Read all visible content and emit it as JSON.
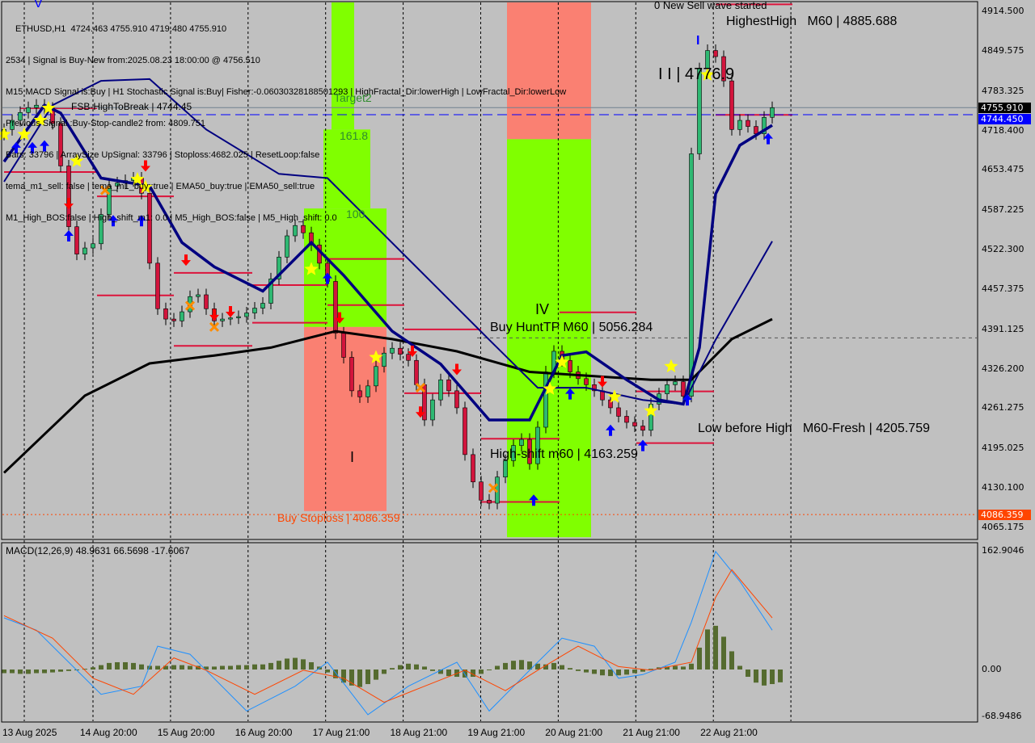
{
  "header": {
    "lines": [
      "ETHUSD,H1  4724.463 4755.910 4719.480 4755.910",
      "2534 | Signal is Buy-New from:2025.08.23 18:00:00 @ 4756.510",
      "M15 MACD Signal is:Buy | H1 Stochastic Signal is:Buy| Fisher:-0.06030328188501293 | HighFractal_Dir:lowerHigh | LowFractal_Dir:lowerLow",
      "Previous Signal :Buy-Stop-candle2 from: 4809.751",
      "Bars: 33796 | ArraySize UpSignal: 33796 | Stoploss:4682.025 | ResetLoop:false",
      "tema_m1_sell: false | tema_m1_buy::true | EMA50_buy:true | EMA50_sell:true",
      "M1_High_BOS:false | High_shift_m1: 0.0 | M5_High_BOS:false | M5_High_shift: 0.0"
    ]
  },
  "annotations": {
    "fsb": "FSB-HighToBreak | 4744.45",
    "target2": "Target2",
    "fib1618": "161.8",
    "fib100": "100",
    "buy_stoploss": "Buy Stoploss | 4086.359",
    "buy_hunt_tp": "Buy HuntTP M60 | 5056.284",
    "wave_iv": "IV",
    "wave_i": "I",
    "high_shift": "High-shift m60 | 4163.259",
    "low_before_high": "Low before High   M60-Fresh | 4205.759",
    "highest_high": "HighestHigh   M60 | 4885.688",
    "new_sell_wave": "0 New Sell wave started",
    "wave_iii": "I I | 4776.9",
    "wave_v": "V",
    "wave_i_blue": "I"
  },
  "colors": {
    "background": "#c0c0c0",
    "bull": "#2eb872",
    "bear": "#d2143c",
    "zone_green": "#80ff00",
    "zone_salmon": "#fa8072",
    "level_red": "#dc143c",
    "ma_slow": "#000000",
    "ma_navy": "#000080",
    "fsb_line": "#0000ff",
    "macd_line": "#1e90ff",
    "signal_line": "#ff4500",
    "histogram": "#556b2f"
  },
  "chart_data": [
    {
      "type": "candlestick",
      "symbol": "ETHUSD",
      "timeframe": "H1",
      "last_ohlc": {
        "open": 4724.463,
        "high": 4755.91,
        "low": 4719.48,
        "close": 4755.91
      },
      "ylim": [
        4040,
        4930
      ],
      "y_ticks": [
        "4914.500",
        "4849.575",
        "4783.325",
        "4718.400",
        "4653.475",
        "4587.225",
        "4522.300",
        "4457.375",
        "4391.125",
        "4326.200",
        "4261.275",
        "4195.025",
        "4130.100",
        "4065.175"
      ],
      "price_labels": [
        {
          "text": "4755.910",
          "price": 4755.91,
          "color": "#000000"
        },
        {
          "text": "4744.450",
          "price": 4744.45,
          "color": "#0000ff"
        },
        {
          "text": "4086.359",
          "price": 4086.359,
          "color": "#ff4500"
        }
      ],
      "x_tick_labels": [
        "13 Aug 2025",
        "14 Aug 20:00",
        "15 Aug 20:00",
        "16 Aug 20:00",
        "17 Aug 21:00",
        "18 Aug 21:00",
        "19 Aug 21:00",
        "20 Aug 21:00",
        "21 Aug 21:00",
        "22 Aug 21:00"
      ],
      "closes": [
        4720,
        4735,
        4748,
        4756,
        4760,
        4755,
        4730,
        4660,
        4560,
        4515,
        4525,
        4532,
        4580,
        4627,
        4632,
        4636,
        4640,
        4615,
        4500,
        4425,
        4408,
        4405,
        4420,
        4445,
        4448,
        4425,
        4405,
        4408,
        4410,
        4412,
        4418,
        4426,
        4434,
        4474,
        4510,
        4545,
        4562,
        4550,
        4530,
        4500,
        4470,
        4385,
        4345,
        4290,
        4280,
        4298,
        4330,
        4352,
        4360,
        4350,
        4340,
        4300,
        4242,
        4275,
        4308,
        4290,
        4262,
        4185,
        4140,
        4110,
        4105,
        4148,
        4175,
        4200,
        4210,
        4170,
        4230,
        4321,
        4355,
        4340,
        4321,
        4310,
        4300,
        4290,
        4275,
        4262,
        4248,
        4238,
        4232,
        4225,
        4268,
        4285,
        4300,
        4305,
        4281,
        4680,
        4820,
        4850,
        4840,
        4800,
        4720,
        4735,
        4725,
        4713,
        4740,
        4755.91
      ],
      "ma_slow": [
        [
          0,
          4155
        ],
        [
          10,
          4282
        ],
        [
          18,
          4335
        ],
        [
          26,
          4348
        ],
        [
          33,
          4361
        ],
        [
          41,
          4388
        ],
        [
          48,
          4375
        ],
        [
          56,
          4355
        ],
        [
          65,
          4321
        ],
        [
          72,
          4315
        ],
        [
          80,
          4308
        ],
        [
          85,
          4308
        ],
        [
          90,
          4375
        ],
        [
          95,
          4408
        ]
      ],
      "ma_navy_thin": [
        [
          0,
          4634
        ],
        [
          6,
          4760
        ],
        [
          12,
          4800
        ],
        [
          18,
          4803
        ],
        [
          25,
          4720
        ],
        [
          34,
          4647
        ],
        [
          40,
          4640
        ],
        [
          46,
          4560
        ],
        [
          53,
          4467
        ],
        [
          60,
          4374
        ],
        [
          66,
          4295
        ],
        [
          72,
          4295
        ],
        [
          79,
          4275
        ],
        [
          84,
          4268
        ],
        [
          88,
          4374
        ],
        [
          95,
          4536
        ]
      ],
      "ma_navy_thick": [
        [
          0,
          4667
        ],
        [
          5,
          4760
        ],
        [
          7,
          4747
        ],
        [
          12,
          4640
        ],
        [
          18,
          4627
        ],
        [
          22,
          4534
        ],
        [
          26,
          4494
        ],
        [
          32,
          4454
        ],
        [
          38,
          4534
        ],
        [
          42,
          4480
        ],
        [
          48,
          4388
        ],
        [
          54,
          4334
        ],
        [
          60,
          4242
        ],
        [
          65,
          4242
        ],
        [
          69,
          4348
        ],
        [
          72,
          4354
        ],
        [
          77,
          4308
        ],
        [
          81,
          4275
        ],
        [
          84,
          4268
        ],
        [
          86,
          4361
        ],
        [
          88,
          4614
        ],
        [
          91,
          4694
        ],
        [
          95,
          4727
        ]
      ],
      "fsb_level": 4744.45,
      "buy_stoploss_level": 4086.359,
      "hunt_tp_dashed_level": 4377,
      "levels": [
        [
          2,
          11.5,
          4755
        ],
        [
          0,
          11.5,
          4650
        ],
        [
          11.5,
          21,
          4610
        ],
        [
          11.5,
          21,
          4447
        ],
        [
          21,
          30.7,
          4484
        ],
        [
          21,
          30.7,
          4364
        ],
        [
          30.7,
          40,
          4464
        ],
        [
          30.7,
          40,
          4402
        ],
        [
          40,
          49.5,
          4507
        ],
        [
          40,
          49.5,
          4431
        ],
        [
          49.5,
          59,
          4391
        ],
        [
          49.5,
          59,
          4286
        ],
        [
          59,
          68.7,
          4211
        ],
        [
          59,
          68.7,
          4107
        ],
        [
          68.7,
          78.2,
          4419
        ],
        [
          78.2,
          87.8,
          4289
        ],
        [
          78.2,
          87.8,
          4204
        ],
        [
          88,
          97.5,
          4744
        ],
        [
          88,
          97.5,
          4926
        ]
      ],
      "zones": [
        {
          "from": 40.5,
          "to": 43.3,
          "low": 4720,
          "high": 4930,
          "color": "zone_green"
        },
        {
          "from": 39.5,
          "to": 45.3,
          "low": 4590,
          "high": 4720,
          "color": "zone_green"
        },
        {
          "from": 37.1,
          "to": 47.3,
          "low": 4395,
          "high": 4590,
          "color": "zone_green"
        },
        {
          "from": 37.1,
          "to": 47.3,
          "low": 4092,
          "high": 4395,
          "color": "zone_salmon"
        },
        {
          "from": 62.2,
          "to": 72.6,
          "low": 4704,
          "high": 4930,
          "color": "zone_salmon"
        },
        {
          "from": 62.2,
          "to": 72.6,
          "low": 4049,
          "high": 4704,
          "color": "zone_green"
        }
      ],
      "signals": [
        {
          "type": "star",
          "bar": 0,
          "price": 4712
        },
        {
          "type": "star",
          "bar": 2.5,
          "price": 4712
        },
        {
          "type": "star",
          "bar": 4.5,
          "price": 4735
        },
        {
          "type": "star",
          "bar": 5.5,
          "price": 4755
        },
        {
          "type": "up",
          "bar": 1.5,
          "price": 4690
        },
        {
          "type": "up",
          "bar": 3.5,
          "price": 4690
        },
        {
          "type": "up",
          "bar": 5,
          "price": 4693
        },
        {
          "type": "up",
          "bar": 8,
          "price": 4545
        },
        {
          "type": "star",
          "bar": 9,
          "price": 4668
        },
        {
          "type": "down",
          "bar": 8,
          "price": 4598
        },
        {
          "type": "cross",
          "bar": 12.5,
          "price": 4620
        },
        {
          "type": "star",
          "bar": 16.5,
          "price": 4638
        },
        {
          "type": "star",
          "bar": 17.5,
          "price": 4625
        },
        {
          "type": "down",
          "bar": 17.5,
          "price": 4660
        },
        {
          "type": "up",
          "bar": 13.5,
          "price": 4570
        },
        {
          "type": "up",
          "bar": 17,
          "price": 4570
        },
        {
          "type": "down",
          "bar": 22.5,
          "price": 4505
        },
        {
          "type": "cross",
          "bar": 23,
          "price": 4430
        },
        {
          "type": "down",
          "bar": 26,
          "price": 4415
        },
        {
          "type": "down",
          "bar": 28,
          "price": 4420
        },
        {
          "type": "cross",
          "bar": 26,
          "price": 4395
        },
        {
          "type": "star",
          "bar": 38,
          "price": 4490
        },
        {
          "type": "up",
          "bar": 40,
          "price": 4475
        },
        {
          "type": "down",
          "bar": 41.5,
          "price": 4410
        },
        {
          "type": "star",
          "bar": 46,
          "price": 4345
        },
        {
          "type": "down",
          "bar": 50.5,
          "price": 4355
        },
        {
          "type": "cross",
          "bar": 51.5,
          "price": 4295
        },
        {
          "type": "down",
          "bar": 51.5,
          "price": 4255
        },
        {
          "type": "down",
          "bar": 56,
          "price": 4325
        },
        {
          "type": "cross",
          "bar": 60.5,
          "price": 4130
        },
        {
          "type": "up",
          "bar": 65.5,
          "price": 4110
        },
        {
          "type": "star",
          "bar": 67.5,
          "price": 4293
        },
        {
          "type": "star",
          "bar": 69,
          "price": 4337
        },
        {
          "type": "up",
          "bar": 70,
          "price": 4285
        },
        {
          "type": "down",
          "bar": 74,
          "price": 4305
        },
        {
          "type": "star",
          "bar": 75.5,
          "price": 4280
        },
        {
          "type": "up",
          "bar": 75,
          "price": 4225
        },
        {
          "type": "up",
          "bar": 79,
          "price": 4200
        },
        {
          "type": "star",
          "bar": 80,
          "price": 4257
        },
        {
          "type": "star",
          "bar": 82.5,
          "price": 4330
        },
        {
          "type": "up",
          "bar": 84.5,
          "price": 4275
        },
        {
          "type": "star",
          "bar": 87,
          "price": 4810
        },
        {
          "type": "up",
          "bar": 94.5,
          "price": 4705
        }
      ]
    },
    {
      "type": "macd",
      "title": "MACD(12,26,9) 48.9631 66.5698 -17.6067",
      "params": [
        12,
        26,
        9
      ],
      "values": {
        "macd": 48.9631,
        "signal": 66.5698,
        "histogram": -17.6067
      },
      "ylim": [
        -68.9486,
        162.9046
      ],
      "y_ticks": [
        "162.9046",
        "0.00",
        "-68.9486"
      ],
      "macd_line": [
        [
          0,
          71
        ],
        [
          4,
          54
        ],
        [
          8,
          10
        ],
        [
          12,
          -34
        ],
        [
          17,
          -23
        ],
        [
          19,
          32
        ],
        [
          23,
          21
        ],
        [
          30,
          -57
        ],
        [
          36,
          -23
        ],
        [
          40,
          10
        ],
        [
          45,
          -62
        ],
        [
          50,
          -23
        ],
        [
          56,
          10
        ],
        [
          60,
          -57
        ],
        [
          65,
          -1
        ],
        [
          69,
          43
        ],
        [
          73,
          32
        ],
        [
          76,
          -12
        ],
        [
          79,
          -7
        ],
        [
          83,
          10
        ],
        [
          85,
          65
        ],
        [
          88,
          162
        ],
        [
          91,
          121
        ],
        [
          95,
          54
        ]
      ],
      "signal_line": [
        [
          0,
          74
        ],
        [
          6,
          43
        ],
        [
          11,
          -12
        ],
        [
          16,
          -34
        ],
        [
          21,
          16
        ],
        [
          25,
          -1
        ],
        [
          31,
          -34
        ],
        [
          37,
          -1
        ],
        [
          42,
          -12
        ],
        [
          47,
          -45
        ],
        [
          52,
          -23
        ],
        [
          57,
          -1
        ],
        [
          62,
          -29
        ],
        [
          66,
          -1
        ],
        [
          71,
          32
        ],
        [
          76,
          4
        ],
        [
          80,
          -1
        ],
        [
          85,
          10
        ],
        [
          88,
          99
        ],
        [
          90,
          137
        ],
        [
          95,
          71
        ]
      ],
      "histogram": [
        -5,
        -5,
        -6,
        -6,
        -5,
        -5,
        -4,
        -3,
        -2,
        -1,
        1,
        3,
        6,
        9,
        10,
        10,
        9,
        7,
        5,
        5,
        5,
        6,
        6,
        5,
        5,
        4,
        4,
        5,
        5,
        6,
        6,
        7,
        7,
        9,
        12,
        15,
        16,
        14,
        10,
        4,
        -4,
        -12,
        -18,
        -22,
        -24,
        -20,
        -14,
        -6,
        2,
        6,
        8,
        7,
        4,
        -2,
        -6,
        -9,
        -10,
        -11,
        -10,
        -6,
        -1,
        5,
        9,
        12,
        13,
        11,
        8,
        7,
        9,
        6,
        2,
        -2,
        -4,
        -6,
        -8,
        -9,
        -8,
        -7,
        -5,
        -3,
        1,
        3,
        4,
        5,
        4,
        8,
        30,
        55,
        60,
        45,
        25,
        5,
        -10,
        -18,
        -22,
        -20,
        -17.6
      ]
    }
  ]
}
